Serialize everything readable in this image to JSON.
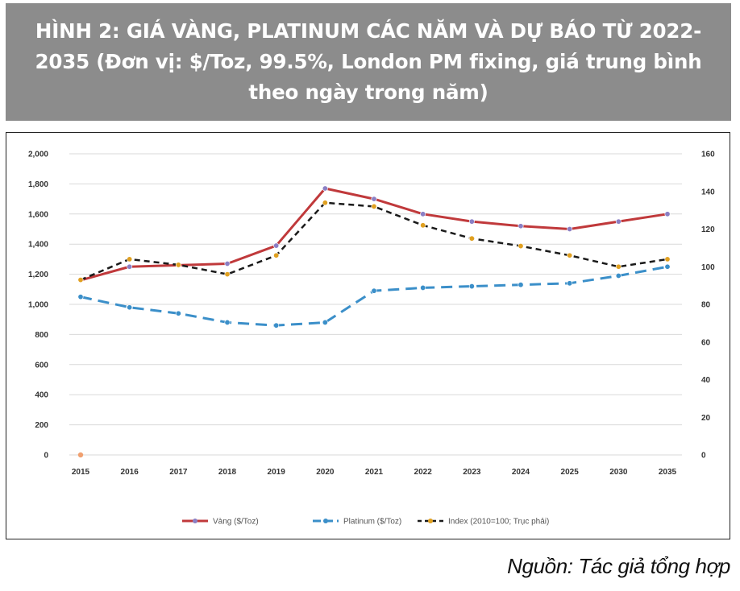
{
  "title": "HÌNH 2: GIÁ VÀNG, PLATINUM CÁC NĂM VÀ DỰ BÁO TỪ 2022-2035 (Đơn vị:  $/Toz, 99.5%, London PM fixing, giá trung bình theo ngày trong năm)",
  "source": "Nguồn: Tác giả tổng hợp",
  "colors": {
    "header_bg": "#8c8c8c",
    "gold": "#c0393b",
    "platinum": "#3b8fc9",
    "index": "#1a1a1a",
    "marker_gold": "#8a7fc4",
    "marker_index": "#e0a020"
  },
  "chart_data": {
    "type": "line",
    "categories": [
      "2015",
      "2016",
      "2017",
      "2018",
      "2019",
      "2020",
      "2021",
      "2022",
      "2023",
      "2024",
      "2025",
      "2030",
      "2035"
    ],
    "y_left": {
      "ticks": [
        "0",
        "200",
        "400",
        "600",
        "800",
        "1,000",
        "1,200",
        "1,400",
        "1,600",
        "1,800",
        "2,000"
      ],
      "ylim": [
        0,
        2000
      ]
    },
    "y_right": {
      "ticks": [
        "0",
        "20",
        "40",
        "60",
        "80",
        "100",
        "120",
        "140",
        "160"
      ],
      "ylim": [
        0,
        160
      ]
    },
    "grid": true,
    "legend_position": "bottom",
    "series": [
      {
        "name": "Vàng ($/Toz)",
        "axis": "left",
        "style": "solid",
        "values": [
          1160,
          1250,
          1260,
          1270,
          1390,
          1770,
          1700,
          1600,
          1550,
          1520,
          1500,
          1550,
          1600
        ]
      },
      {
        "name": "Platinum ($/Toz)",
        "axis": "left",
        "style": "dashed",
        "values": [
          1050,
          980,
          940,
          880,
          860,
          880,
          1090,
          1110,
          1120,
          1130,
          1140,
          1190,
          1250
        ]
      },
      {
        "name": "Index (2010=100; Trục phải)",
        "axis": "right",
        "style": "dotted",
        "values": [
          93,
          104,
          101,
          96,
          106,
          134,
          132,
          122,
          115,
          111,
          106,
          100,
          104
        ]
      }
    ],
    "stray_marker": {
      "x": "2015",
      "y": 0
    }
  }
}
